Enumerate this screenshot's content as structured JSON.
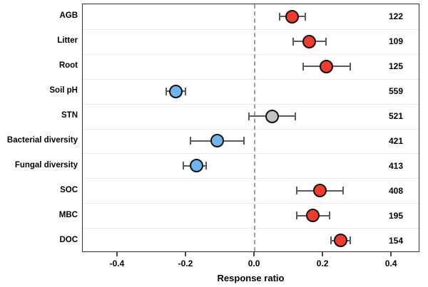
{
  "chart_data": {
    "type": "scatter",
    "subtype": "forest-plot-dot-with-error-bars",
    "title": "",
    "xlabel": "Response ratio",
    "ylabel": "",
    "xlim": [
      -0.502,
      0.483
    ],
    "x_ticks": [
      -0.4,
      -0.2,
      0.0,
      0.2,
      0.4
    ],
    "x_tick_labels": [
      "-0.4",
      "-0.2",
      "0.0",
      "0.2",
      "0.4"
    ],
    "zero_reference_line": 0.0,
    "grid": "dotted horizontal separators between rows, dashed vertical line at zero",
    "legend_position": "none",
    "rows": [
      {
        "label": "AGB",
        "n": "122",
        "value": 0.11,
        "ci_low": 0.07,
        "ci_high": 0.15,
        "color_key": "red"
      },
      {
        "label": "Litter",
        "n": "109",
        "value": 0.16,
        "ci_low": 0.11,
        "ci_high": 0.21,
        "color_key": "red"
      },
      {
        "label": "Root",
        "n": "125",
        "value": 0.21,
        "ci_low": 0.14,
        "ci_high": 0.28,
        "color_key": "red"
      },
      {
        "label": "Soil pH",
        "n": "559",
        "value": -0.23,
        "ci_low": -0.26,
        "ci_high": -0.2,
        "color_key": "blue"
      },
      {
        "label": "STN",
        "n": "521",
        "value": 0.05,
        "ci_low": -0.02,
        "ci_high": 0.12,
        "color_key": "gray"
      },
      {
        "label": "Bacterial diversity",
        "n": "421",
        "value": -0.11,
        "ci_low": -0.19,
        "ci_high": -0.03,
        "color_key": "blue"
      },
      {
        "label": "Fungal diversity",
        "n": "413",
        "value": -0.17,
        "ci_low": -0.21,
        "ci_high": -0.14,
        "color_key": "blue"
      },
      {
        "label": "SOC",
        "n": "408",
        "value": 0.19,
        "ci_low": 0.12,
        "ci_high": 0.26,
        "color_key": "red"
      },
      {
        "label": "MBC",
        "n": "195",
        "value": 0.17,
        "ci_low": 0.12,
        "ci_high": 0.22,
        "color_key": "red"
      },
      {
        "label": "DOC",
        "n": "154",
        "value": 0.25,
        "ci_low": 0.22,
        "ci_high": 0.28,
        "color_key": "red"
      }
    ],
    "colors": {
      "red": "#f13b2f",
      "blue": "#6db4f1",
      "gray": "#c3c3c3",
      "marker_outline": "#111111",
      "error_bar": "#5a5a5a",
      "plot_border": "#2f2f2f",
      "zero_line": "#9e9e9e",
      "row_separator": "#d6d6d6",
      "text": "#000000"
    }
  }
}
